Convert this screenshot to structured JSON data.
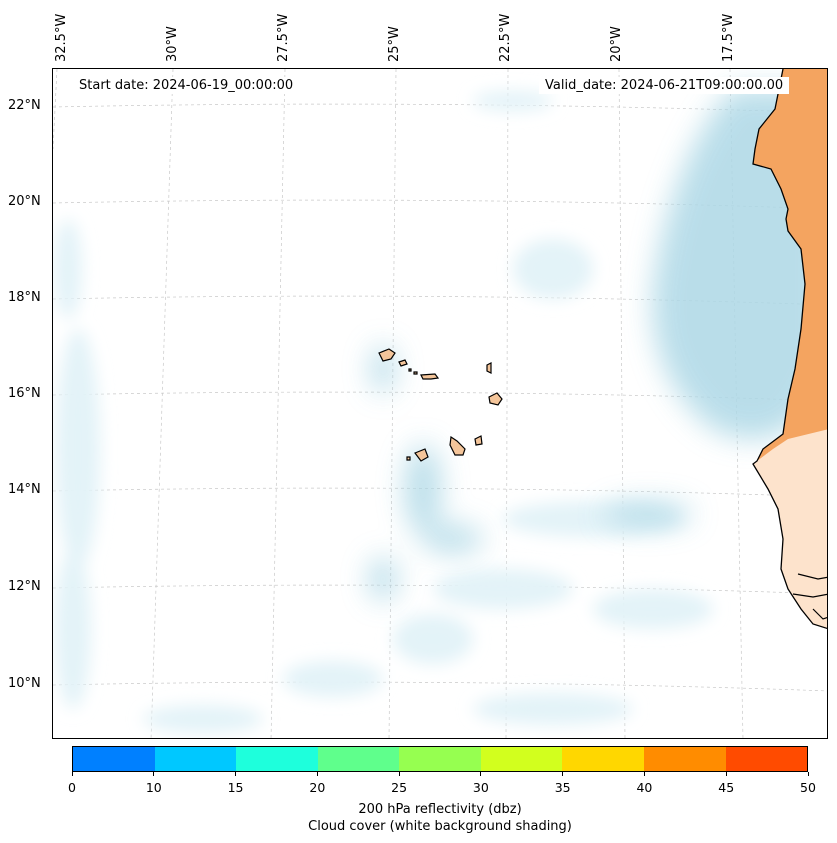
{
  "map": {
    "start_date": "Start date: 2024-06-19_00:00:00",
    "valid_date": "Valid_date: 2024-06-21T09:00:00.00",
    "lon_labels": [
      "32.5°W",
      "30°W",
      "27.5°W",
      "25°W",
      "22.5°W",
      "20°W",
      "17.5°W"
    ],
    "lat_labels": [
      "22°N",
      "20°N",
      "18°N",
      "16°N",
      "14°N",
      "12°N",
      "10°N"
    ],
    "colors": {
      "land": "#f4a460",
      "land_light": "#fde3cc",
      "cloud": "#add8e6",
      "cloud_faint": "#e3f3f8",
      "coast": "#000000",
      "grid": "#c8c8c8"
    }
  },
  "colorbar": {
    "tick_labels": [
      "0",
      "10",
      "15",
      "20",
      "25",
      "30",
      "35",
      "40",
      "45",
      "50"
    ],
    "colors": [
      "#0080ff",
      "#00c8ff",
      "#1effdc",
      "#5fff8c",
      "#96ff50",
      "#d2ff1e",
      "#ffd700",
      "#ff8c00",
      "#ff4b00"
    ],
    "label": "200 hPa reflectivity (dbz)",
    "sublabel": "Cloud cover (white background shading)"
  }
}
